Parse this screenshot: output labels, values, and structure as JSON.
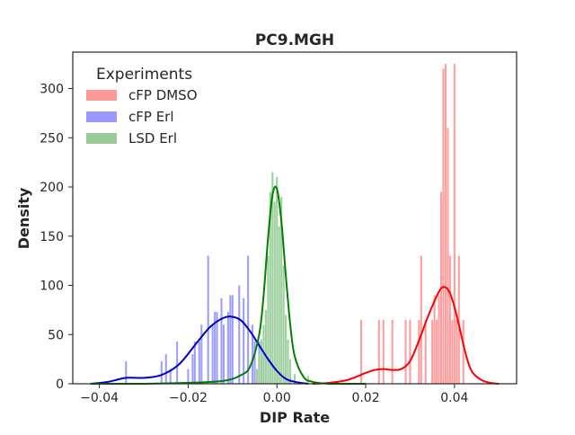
{
  "chart_data": {
    "type": "histogram",
    "title": "PC9.MGH",
    "xlabel": "DIP Rate",
    "ylabel": "Density",
    "xlim": [
      -0.046,
      0.054
    ],
    "ylim": [
      0,
      337
    ],
    "x_ticks": [
      -0.04,
      -0.02,
      0.0,
      0.02,
      0.04
    ],
    "x_tick_labels": [
      "−0.04",
      "−0.02",
      "0.00",
      "0.02",
      "0.04"
    ],
    "y_ticks": [
      0,
      50,
      100,
      150,
      200,
      250,
      300
    ],
    "y_tick_labels": [
      "0",
      "50",
      "100",
      "150",
      "200",
      "250",
      "300"
    ],
    "grid": false,
    "legend": {
      "title": "Experiments",
      "placement": "top-left"
    },
    "series": [
      {
        "name": "cFP DMSO",
        "color": "#ff0000",
        "bar_color": "#ff9999",
        "hist": [
          {
            "x": 0.019,
            "y": 65
          },
          {
            "x": 0.023,
            "y": 65
          },
          {
            "x": 0.024,
            "y": 65
          },
          {
            "x": 0.026,
            "y": 65
          },
          {
            "x": 0.029,
            "y": 65
          },
          {
            "x": 0.03,
            "y": 65
          },
          {
            "x": 0.032,
            "y": 65
          },
          {
            "x": 0.0325,
            "y": 130
          },
          {
            "x": 0.0335,
            "y": 65
          },
          {
            "x": 0.035,
            "y": 65
          },
          {
            "x": 0.0355,
            "y": 90
          },
          {
            "x": 0.036,
            "y": 65
          },
          {
            "x": 0.0365,
            "y": 90
          },
          {
            "x": 0.037,
            "y": 195
          },
          {
            "x": 0.0375,
            "y": 320
          },
          {
            "x": 0.038,
            "y": 325
          },
          {
            "x": 0.0385,
            "y": 260
          },
          {
            "x": 0.039,
            "y": 130
          },
          {
            "x": 0.0395,
            "y": 65
          },
          {
            "x": 0.04,
            "y": 325
          },
          {
            "x": 0.0405,
            "y": 65
          },
          {
            "x": 0.041,
            "y": 130
          },
          {
            "x": 0.042,
            "y": 65
          }
        ],
        "kde": {
          "x": [
            0.008,
            0.012,
            0.016,
            0.02,
            0.022,
            0.024,
            0.026,
            0.028,
            0.03,
            0.032,
            0.034,
            0.036,
            0.037,
            0.038,
            0.039,
            0.04,
            0.041,
            0.042,
            0.043,
            0.044,
            0.046,
            0.048,
            0.05
          ],
          "y": [
            0,
            1,
            4,
            11,
            14,
            15,
            14,
            15,
            23,
            44,
            68,
            89,
            97,
            98,
            92,
            78,
            60,
            40,
            23,
            12,
            4,
            1,
            0
          ]
        }
      },
      {
        "name": "cFP Erl",
        "color": "#0000cc",
        "bar_color": "#9999ff",
        "hist": [
          {
            "x": -0.034,
            "y": 23
          },
          {
            "x": -0.026,
            "y": 23
          },
          {
            "x": -0.025,
            "y": 30
          },
          {
            "x": -0.024,
            "y": 15
          },
          {
            "x": -0.0225,
            "y": 43
          },
          {
            "x": -0.02,
            "y": 15
          },
          {
            "x": -0.019,
            "y": 30
          },
          {
            "x": -0.0185,
            "y": 43
          },
          {
            "x": -0.0175,
            "y": 43
          },
          {
            "x": -0.017,
            "y": 60
          },
          {
            "x": -0.0155,
            "y": 130
          },
          {
            "x": -0.0145,
            "y": 60
          },
          {
            "x": -0.014,
            "y": 73
          },
          {
            "x": -0.0135,
            "y": 73
          },
          {
            "x": -0.0125,
            "y": 87
          },
          {
            "x": -0.012,
            "y": 60
          },
          {
            "x": -0.011,
            "y": 73
          },
          {
            "x": -0.0105,
            "y": 90
          },
          {
            "x": -0.01,
            "y": 90
          },
          {
            "x": -0.0085,
            "y": 100
          },
          {
            "x": -0.0075,
            "y": 87
          },
          {
            "x": -0.0065,
            "y": 130
          },
          {
            "x": -0.0055,
            "y": 60
          },
          {
            "x": -0.005,
            "y": 43
          },
          {
            "x": -0.004,
            "y": 43
          },
          {
            "x": -0.003,
            "y": 30
          }
        ],
        "kde": {
          "x": [
            -0.042,
            -0.038,
            -0.034,
            -0.03,
            -0.026,
            -0.022,
            -0.018,
            -0.015,
            -0.012,
            -0.01,
            -0.008,
            -0.006,
            -0.004,
            -0.002,
            0.0,
            0.002,
            0.004,
            0.007
          ],
          "y": [
            0,
            2,
            6,
            6,
            9,
            20,
            42,
            58,
            67,
            68,
            64,
            53,
            39,
            25,
            13,
            5,
            2,
            0
          ]
        }
      },
      {
        "name": "LSD Erl",
        "color": "#008000",
        "bar_color": "#99cc99",
        "hist": [
          {
            "x": -0.0045,
            "y": 15
          },
          {
            "x": -0.004,
            "y": 30
          },
          {
            "x": -0.0035,
            "y": 45
          },
          {
            "x": -0.003,
            "y": 60
          },
          {
            "x": -0.0025,
            "y": 75
          },
          {
            "x": -0.002,
            "y": 130
          },
          {
            "x": -0.0015,
            "y": 195
          },
          {
            "x": -0.001,
            "y": 215
          },
          {
            "x": -0.0005,
            "y": 185
          },
          {
            "x": 0.0,
            "y": 210
          },
          {
            "x": 0.0005,
            "y": 160
          },
          {
            "x": 0.001,
            "y": 190
          },
          {
            "x": 0.0015,
            "y": 120
          },
          {
            "x": 0.002,
            "y": 70
          },
          {
            "x": 0.0025,
            "y": 45
          },
          {
            "x": 0.003,
            "y": 25
          },
          {
            "x": 0.004,
            "y": 10
          },
          {
            "x": 0.007,
            "y": 8
          }
        ],
        "kde": {
          "x": [
            -0.042,
            -0.03,
            -0.02,
            -0.012,
            -0.008,
            -0.006,
            -0.004,
            -0.003,
            -0.002,
            -0.001,
            0.0,
            0.001,
            0.002,
            0.003,
            0.004,
            0.006,
            0.008,
            0.012,
            0.02
          ],
          "y": [
            0,
            0,
            1,
            3,
            9,
            18,
            50,
            90,
            148,
            192,
            198,
            165,
            110,
            60,
            28,
            7,
            2,
            0,
            0
          ]
        }
      }
    ]
  }
}
